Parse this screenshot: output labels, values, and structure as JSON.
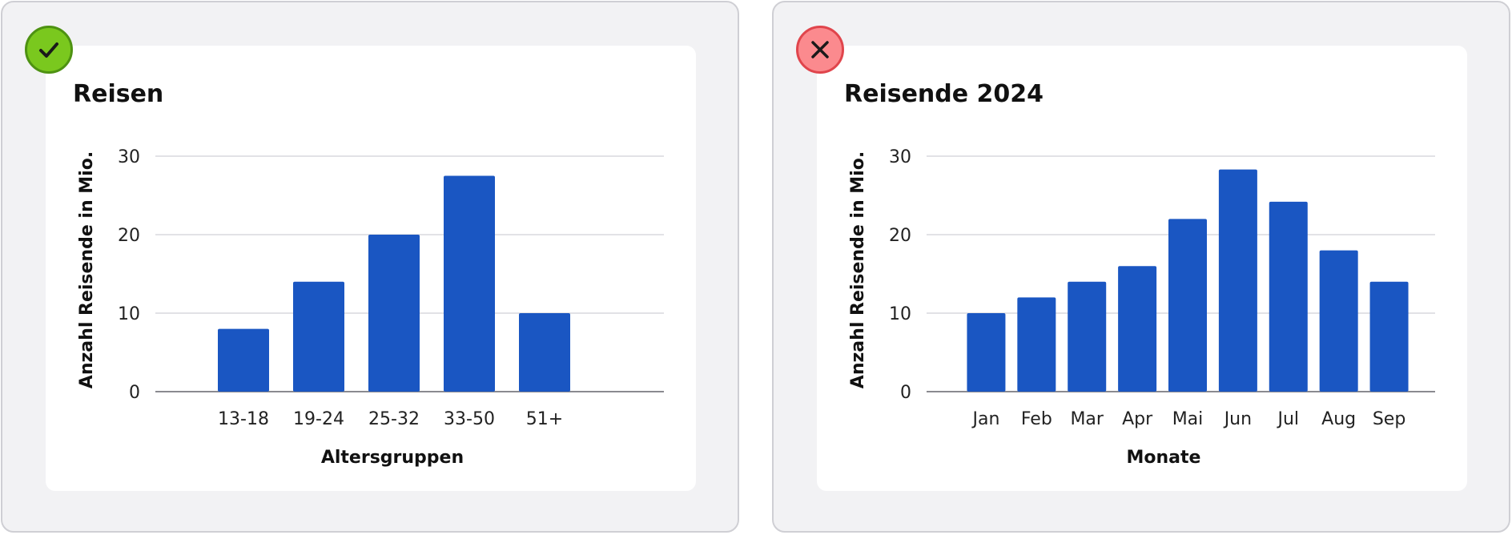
{
  "colors": {
    "bar": "#1a56c2",
    "grid": "#d9d9de",
    "axis": "#8a8a90",
    "ok_badge": "#7ac81e",
    "bad_badge": "#fb8a8e"
  },
  "left_panel": {
    "badge_icon": "checkmark-icon",
    "status": "correct"
  },
  "right_panel": {
    "badge_icon": "close-icon",
    "status": "incorrect"
  },
  "chart_data": [
    {
      "type": "bar",
      "title": "Reisen",
      "xlabel": "Altersgruppen",
      "ylabel": "Anzahl Reisende in Mio.",
      "categories": [
        "13-18",
        "19-24",
        "25-32",
        "33-50",
        "51+"
      ],
      "values": [
        8,
        14,
        20,
        27.5,
        10
      ],
      "ylim": [
        0,
        30
      ],
      "yticks": [
        "0",
        "10",
        "20",
        "30"
      ],
      "grid": true
    },
    {
      "type": "bar",
      "title": "Reisende 2024",
      "xlabel": "Monate",
      "ylabel": "Anzahl Reisende in Mio.",
      "categories": [
        "Jan",
        "Feb",
        "Mar",
        "Apr",
        "Mai",
        "Jun",
        "Jul",
        "Aug",
        "Sep"
      ],
      "values": [
        10,
        12,
        14,
        16,
        22,
        28.3,
        24.2,
        18,
        14
      ],
      "ylim": [
        0,
        30
      ],
      "yticks": [
        "0",
        "10",
        "20",
        "30"
      ],
      "grid": true
    }
  ]
}
